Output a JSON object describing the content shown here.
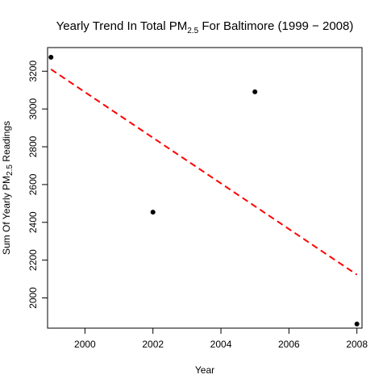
{
  "chart_data": {
    "type": "scatter",
    "title": {
      "prefix": "Yearly Trend In Total PM",
      "subscript": "2.5",
      "suffix": " For Baltimore (1999 −  2008)"
    },
    "xlabel": "Year",
    "ylabel": {
      "prefix": "Sum Of Yearly PM",
      "subscript": "2.5",
      "suffix": " Readings"
    },
    "xlim": [
      1998.9,
      2008.15
    ],
    "ylim": [
      1840,
      3325
    ],
    "xticks": [
      2000,
      2002,
      2004,
      2006,
      2008
    ],
    "yticks": [
      2000,
      2200,
      2400,
      2600,
      2800,
      3000,
      3200
    ],
    "grid": false,
    "points": [
      {
        "x": 1999,
        "y": 3274
      },
      {
        "x": 2002,
        "y": 2454
      },
      {
        "x": 2005,
        "y": 3091
      },
      {
        "x": 2008,
        "y": 1862
      }
    ],
    "trend_line": {
      "style": "dashed",
      "color": "#ff0000",
      "x": [
        1999,
        2008
      ],
      "y": [
        3210,
        2123
      ]
    },
    "point_color": "#000000"
  }
}
